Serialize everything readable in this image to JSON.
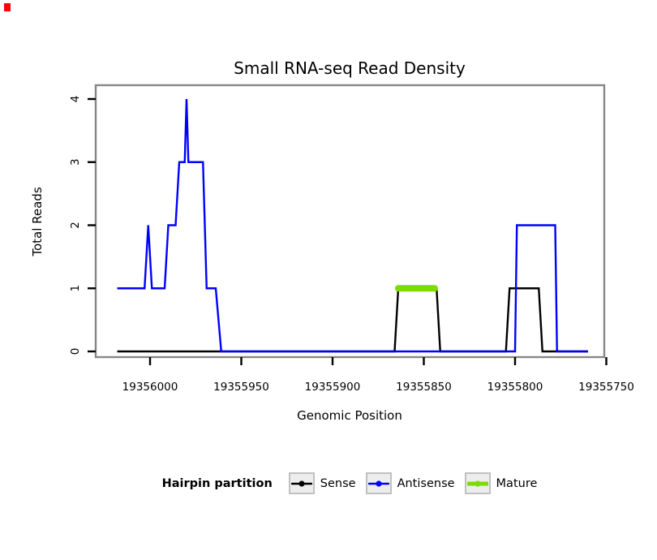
{
  "decor": {
    "corner_marker_color": "#ff0000"
  },
  "chart_data": {
    "type": "line",
    "title": "Small RNA-seq Read Density",
    "xlabel": "Genomic Position",
    "ylabel": "Total Reads",
    "grid": false,
    "x_axis": {
      "ticks": [
        19356000,
        19355950,
        19355900,
        19355850,
        19355800,
        19355750
      ],
      "reversed": true,
      "range": [
        19356030,
        19355751
      ]
    },
    "y_axis": {
      "ticks": [
        0,
        1,
        2,
        3,
        4
      ],
      "lim": [
        0,
        4
      ]
    },
    "legend": {
      "title": "Hairpin partition",
      "position": "bottom",
      "entries": [
        {
          "name": "Sense",
          "color": "#000000",
          "line_width": 2.4
        },
        {
          "name": "Antisense",
          "color": "#0000ff",
          "line_width": 2.4
        },
        {
          "name": "Mature",
          "color": "#7cdb00",
          "line_width": 8
        }
      ]
    },
    "series": [
      {
        "name": "Sense",
        "color": "#000000",
        "width": 2.4,
        "points": [
          [
            19356018,
            0
          ],
          [
            19355866,
            0
          ],
          [
            19355864,
            1
          ],
          [
            19355843,
            1
          ],
          [
            19355841,
            0
          ],
          [
            19355805,
            0
          ],
          [
            19355803,
            1
          ],
          [
            19355787,
            1
          ],
          [
            19355785,
            0
          ],
          [
            19355760,
            0
          ]
        ]
      },
      {
        "name": "Antisense",
        "color": "#0000ff",
        "width": 2.4,
        "points": [
          [
            19356018,
            1
          ],
          [
            19356003,
            1
          ],
          [
            19356001,
            2
          ],
          [
            19355999,
            1
          ],
          [
            19355992,
            1
          ],
          [
            19355990,
            2
          ],
          [
            19355986,
            2
          ],
          [
            19355984,
            3
          ],
          [
            19355981,
            3
          ],
          [
            19355980,
            4
          ],
          [
            19355979,
            3
          ],
          [
            19355971,
            3
          ],
          [
            19355969,
            1
          ],
          [
            19355964,
            1
          ],
          [
            19355961,
            0
          ],
          [
            19355800,
            0
          ],
          [
            19355799,
            2
          ],
          [
            19355778,
            2
          ],
          [
            19355777,
            0
          ],
          [
            19355760,
            0
          ]
        ]
      },
      {
        "name": "Mature",
        "color": "#7cdb00",
        "width": 8,
        "points": [
          [
            19355864,
            1
          ],
          [
            19355844,
            1
          ]
        ]
      }
    ]
  }
}
